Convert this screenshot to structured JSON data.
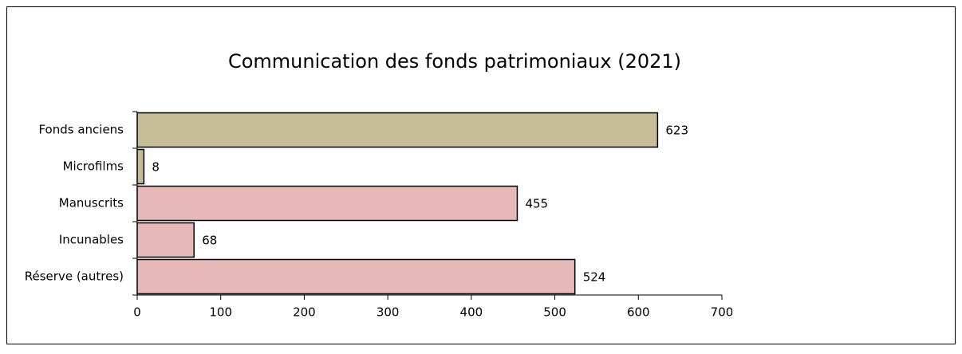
{
  "chart_data": {
    "type": "bar",
    "orientation": "horizontal",
    "title": "Communication des fonds patrimoniaux (2021)",
    "categories": [
      "Fonds anciens",
      "Microfilms",
      "Manuscrits",
      "Incunables",
      "Réserve (autres)"
    ],
    "values": [
      623,
      8,
      455,
      68,
      524
    ],
    "colors": [
      "#c4bd97",
      "#c4bd97",
      "#e6b9b8",
      "#e6b9b8",
      "#e6b9b8"
    ],
    "xlim": [
      0,
      700
    ],
    "xticks": [
      0,
      100,
      200,
      300,
      400,
      500,
      600,
      700
    ],
    "grid": false
  }
}
